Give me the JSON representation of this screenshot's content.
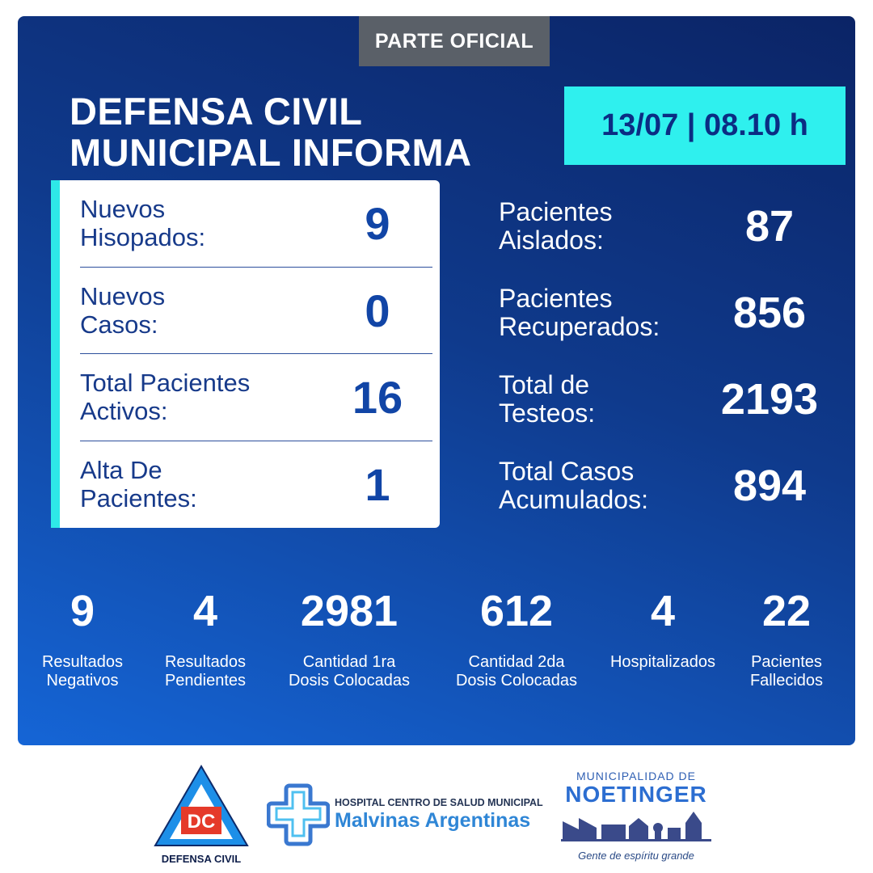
{
  "header": {
    "tag": "PARTE OFICIAL",
    "title_line1": "DEFENSA CIVIL",
    "title_line2": "MUNICIPAL INFORMA",
    "date": "13/07 | 08.10 h"
  },
  "card": [
    {
      "label_line1": "Nuevos",
      "label_line2": "Hisopados:",
      "value": "9"
    },
    {
      "label_line1": "Nuevos",
      "label_line2": "Casos:",
      "value": "0"
    },
    {
      "label_line1": "Total Pacientes",
      "label_line2": "Activos:",
      "value": "16"
    },
    {
      "label_line1": "Alta De",
      "label_line2": "Pacientes:",
      "value": "1"
    }
  ],
  "stats": [
    {
      "label_line1": "Pacientes",
      "label_line2": "Aislados:",
      "value": "87"
    },
    {
      "label_line1": "Pacientes",
      "label_line2": "Recuperados:",
      "value": "856"
    },
    {
      "label_line1": "Total de",
      "label_line2": "Testeos:",
      "value": "2193"
    },
    {
      "label_line1": "Total Casos",
      "label_line2": "Acumulados:",
      "value": "894"
    }
  ],
  "bottom": [
    {
      "value": "9",
      "caption_line1": "Resultados",
      "caption_line2": "Negativos"
    },
    {
      "value": "4",
      "caption_line1": "Resultados",
      "caption_line2": "Pendientes"
    },
    {
      "value": "2981",
      "caption_line1": "Cantidad 1ra",
      "caption_line2": "Dosis Colocadas"
    },
    {
      "value": "612",
      "caption_line1": "Cantidad 2da",
      "caption_line2": "Dosis Colocadas"
    },
    {
      "value": "4",
      "caption_line1": "Hospitalizados",
      "caption_line2": ""
    },
    {
      "value": "22",
      "caption_line1": "Pacientes",
      "caption_line2": "Fallecidos"
    }
  ],
  "footer": {
    "dc_logo_letters": "DC",
    "dc_caption": "DEFENSA CIVIL",
    "hospital_line1": "HOSPITAL CENTRO DE SALUD MUNICIPAL",
    "hospital_line2": "Malvinas Argentinas",
    "muni_line1": "MUNICIPALIDAD DE",
    "muni_line2": "NOETINGER",
    "muni_slogan": "Gente de espíritu grande"
  },
  "colors": {
    "panel_dark": "#0b2466",
    "panel_light": "#1565d6",
    "accent_cyan": "#2ff0ee",
    "card_text": "#173a8a",
    "tag_gray": "#5a6068"
  }
}
